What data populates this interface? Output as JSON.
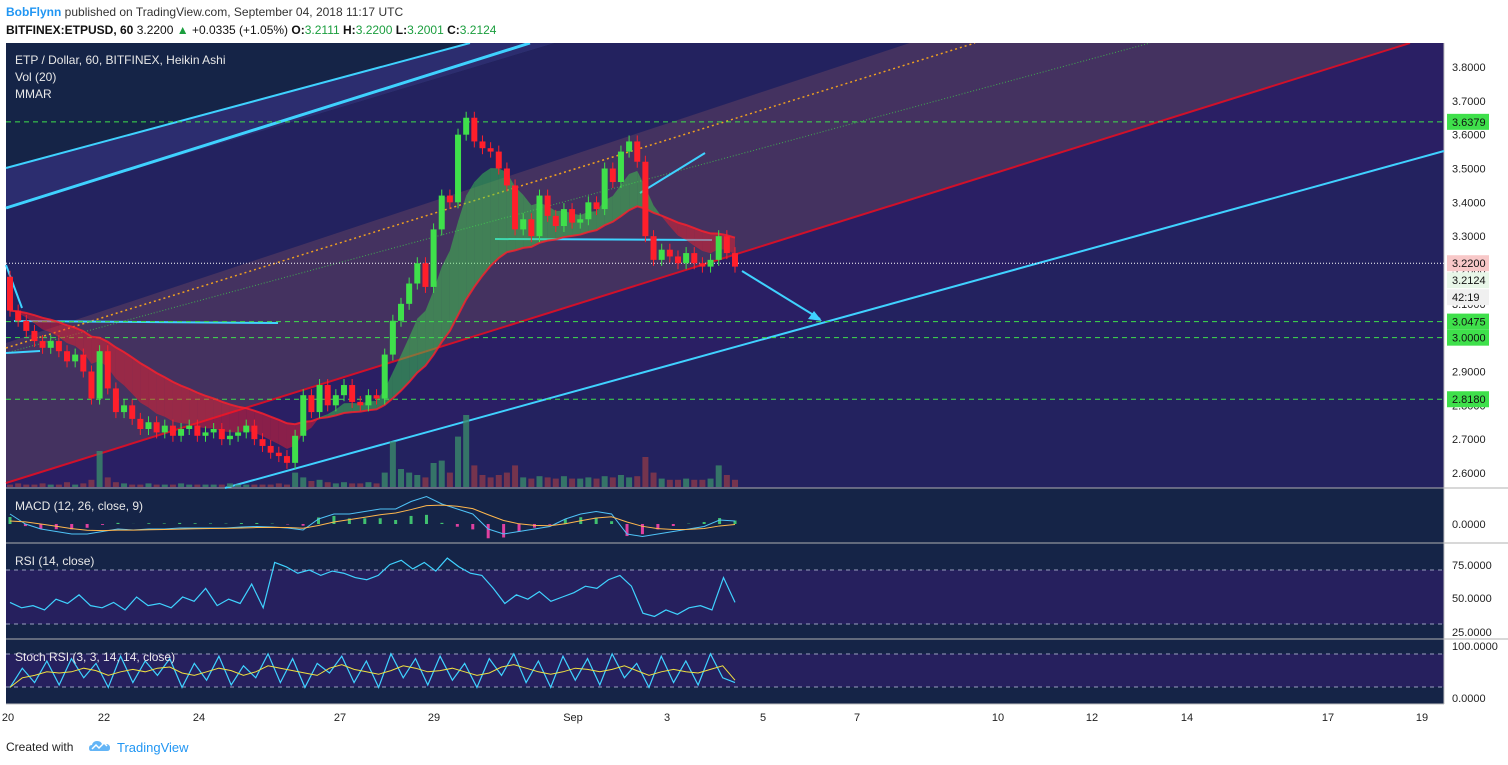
{
  "header": {
    "author": "BobFlynn",
    "published": "published on TradingView.com, September 04, 2018 11:17 UTC",
    "symbol": "BITFINEX:ETPUSD, 60",
    "price": "3.2200",
    "change": "+0.0335 (+1.05%)",
    "o_label": "O:",
    "o": "3.2111",
    "h_label": "H:",
    "h": "3.2200",
    "l_label": "L:",
    "l": "3.2001",
    "c_label": "C:",
    "c": "3.2124"
  },
  "panes": {
    "main": {
      "title": "ETP / Dollar, 60, BITFINEX, Heikin Ashi",
      "vol": "Vol (20)",
      "mmar": "MMAR"
    },
    "macd": {
      "title": "MACD (12, 26, close, 9)"
    },
    "rsi": {
      "title": "RSI (14, close)"
    },
    "stoch": {
      "title": "Stoch RSI (3, 3, 14, 14, close)"
    }
  },
  "footer": {
    "created": "Created with",
    "brand": "TradingView"
  },
  "colors": {
    "background": "#152447",
    "bull": "#3fe04b",
    "bear": "#ff1f2b",
    "channel": "#3fd2ff",
    "level": "#3fe04b"
  },
  "chart_data": {
    "type": "candlestick",
    "style": "Heikin Ashi",
    "ylim": [
      2.57,
      3.86
    ],
    "y_ticks": [
      "3.8000",
      "3.7000",
      "3.6000",
      "3.5000",
      "3.4000",
      "3.3000",
      "3.2000",
      "3.1000",
      "3.0000",
      "2.9000",
      "2.8000",
      "2.7000",
      "2.6000"
    ],
    "x_ticks": [
      "20",
      "22",
      "24",
      "27",
      "29",
      "Sep",
      "3",
      "5",
      "7",
      "10",
      "12",
      "14",
      "17",
      "19"
    ],
    "price_labels": [
      {
        "text": "3.6379",
        "kind": "level"
      },
      {
        "text": "3.2200",
        "kind": "current"
      },
      {
        "text": "3.2124",
        "kind": "close"
      },
      {
        "text": "42:19",
        "kind": "timer"
      },
      {
        "text": "3.0475",
        "kind": "level"
      },
      {
        "text": "3.0000",
        "kind": "level"
      },
      {
        "text": "2.8180",
        "kind": "level"
      }
    ],
    "levels": [
      3.6379,
      3.0475,
      3.0,
      2.818
    ],
    "candles": [
      [
        3.18,
        3.08
      ],
      [
        3.08,
        3.05
      ],
      [
        3.05,
        3.02
      ],
      [
        3.02,
        2.99
      ],
      [
        2.99,
        2.97
      ],
      [
        2.97,
        2.99
      ],
      [
        2.99,
        2.96
      ],
      [
        2.96,
        2.93
      ],
      [
        2.93,
        2.95
      ],
      [
        2.95,
        2.9
      ],
      [
        2.9,
        2.82
      ],
      [
        2.82,
        2.96
      ],
      [
        2.96,
        2.85
      ],
      [
        2.85,
        2.78
      ],
      [
        2.78,
        2.8
      ],
      [
        2.8,
        2.76
      ],
      [
        2.76,
        2.73
      ],
      [
        2.73,
        2.75
      ],
      [
        2.75,
        2.72
      ],
      [
        2.72,
        2.74
      ],
      [
        2.74,
        2.71
      ],
      [
        2.71,
        2.73
      ],
      [
        2.73,
        2.74
      ],
      [
        2.74,
        2.71
      ],
      [
        2.71,
        2.72
      ],
      [
        2.72,
        2.73
      ],
      [
        2.73,
        2.7
      ],
      [
        2.7,
        2.71
      ],
      [
        2.71,
        2.72
      ],
      [
        2.72,
        2.74
      ],
      [
        2.74,
        2.7
      ],
      [
        2.7,
        2.68
      ],
      [
        2.68,
        2.66
      ],
      [
        2.66,
        2.65
      ],
      [
        2.65,
        2.63
      ],
      [
        2.63,
        2.71
      ],
      [
        2.71,
        2.83
      ],
      [
        2.83,
        2.78
      ],
      [
        2.78,
        2.86
      ],
      [
        2.86,
        2.8
      ],
      [
        2.8,
        2.83
      ],
      [
        2.83,
        2.86
      ],
      [
        2.86,
        2.81
      ],
      [
        2.81,
        2.8
      ],
      [
        2.8,
        2.83
      ],
      [
        2.83,
        2.82
      ],
      [
        2.82,
        2.95
      ],
      [
        2.95,
        3.05
      ],
      [
        3.05,
        3.1
      ],
      [
        3.1,
        3.16
      ],
      [
        3.16,
        3.22
      ],
      [
        3.22,
        3.15
      ],
      [
        3.15,
        3.32
      ],
      [
        3.32,
        3.42
      ],
      [
        3.42,
        3.4
      ],
      [
        3.4,
        3.6
      ],
      [
        3.6,
        3.65
      ],
      [
        3.65,
        3.58
      ],
      [
        3.58,
        3.56
      ],
      [
        3.56,
        3.55
      ],
      [
        3.55,
        3.5
      ],
      [
        3.5,
        3.45
      ],
      [
        3.45,
        3.32
      ],
      [
        3.32,
        3.35
      ],
      [
        3.35,
        3.3
      ],
      [
        3.3,
        3.42
      ],
      [
        3.42,
        3.36
      ],
      [
        3.36,
        3.33
      ],
      [
        3.33,
        3.38
      ],
      [
        3.38,
        3.34
      ],
      [
        3.34,
        3.35
      ],
      [
        3.35,
        3.4
      ],
      [
        3.4,
        3.38
      ],
      [
        3.38,
        3.5
      ],
      [
        3.5,
        3.46
      ],
      [
        3.46,
        3.55
      ],
      [
        3.55,
        3.58
      ],
      [
        3.58,
        3.52
      ],
      [
        3.52,
        3.3
      ],
      [
        3.3,
        3.23
      ],
      [
        3.23,
        3.26
      ],
      [
        3.26,
        3.24
      ],
      [
        3.24,
        3.22
      ],
      [
        3.22,
        3.25
      ],
      [
        3.25,
        3.22
      ],
      [
        3.22,
        3.21
      ],
      [
        3.21,
        3.23
      ],
      [
        3.23,
        3.3
      ],
      [
        3.3,
        3.25
      ],
      [
        3.25,
        3.21
      ]
    ],
    "volume": [
      2,
      3,
      2,
      2,
      3,
      2,
      2,
      4,
      2,
      3,
      6,
      30,
      8,
      4,
      3,
      2,
      2,
      3,
      2,
      2,
      2,
      3,
      2,
      2,
      2,
      2,
      2,
      3,
      2,
      2,
      2,
      2,
      2,
      3,
      2,
      12,
      8,
      5,
      6,
      4,
      3,
      4,
      3,
      3,
      4,
      3,
      12,
      38,
      15,
      12,
      10,
      8,
      20,
      22,
      12,
      42,
      60,
      18,
      10,
      8,
      10,
      12,
      18,
      8,
      7,
      9,
      8,
      7,
      9,
      7,
      7,
      8,
      7,
      9,
      8,
      10,
      8,
      9,
      25,
      12,
      7,
      6,
      6,
      7,
      6,
      6,
      7,
      18,
      10,
      6
    ],
    "macd": [
      0.02,
      0,
      -0.01,
      -0.015,
      -0.02,
      -0.02,
      -0.015,
      -0.01,
      -0.012,
      -0.01,
      -0.01,
      -0.008,
      -0.008,
      -0.008,
      -0.008,
      -0.006,
      -0.005,
      -0.006,
      -0.008,
      -0.012,
      0.01,
      0.02,
      0.02,
      0.025,
      0.03,
      0.03,
      0.045,
      0.055,
      0.04,
      0.03,
      0.02,
      -0.01,
      -0.02,
      -0.015,
      -0.01,
      -0.005,
      0.01,
      0.02,
      0.025,
      0.02,
      -0.02,
      -0.025,
      -0.02,
      -0.015,
      -0.01,
      -0.005,
      0.008,
      0.006
    ],
    "rsi": [
      45,
      40,
      42,
      38,
      48,
      44,
      52,
      42,
      40,
      45,
      38,
      50,
      42,
      44,
      40,
      50,
      46,
      58,
      42,
      48,
      44,
      62,
      40,
      82,
      78,
      72,
      75,
      70,
      74,
      72,
      68,
      66,
      70,
      80,
      84,
      76,
      82,
      74,
      86,
      78,
      72,
      70,
      58,
      44,
      52,
      48,
      55,
      46,
      50,
      54,
      60,
      58,
      66,
      70,
      60,
      35,
      32,
      38,
      34,
      40,
      42,
      38,
      68,
      45
    ],
    "stoch": [
      20,
      60,
      30,
      75,
      25,
      80,
      40,
      70,
      20,
      85,
      30,
      75,
      45,
      80,
      20,
      70,
      35,
      85,
      25,
      65,
      40,
      90,
      30,
      80,
      20,
      70,
      50,
      85,
      30,
      75,
      20,
      90,
      40,
      80,
      25,
      85,
      35,
      70,
      20,
      80,
      45,
      90,
      30,
      75,
      20,
      85,
      35,
      80,
      25,
      90,
      40,
      70,
      20,
      85,
      30,
      75,
      25,
      90,
      40,
      30
    ]
  }
}
